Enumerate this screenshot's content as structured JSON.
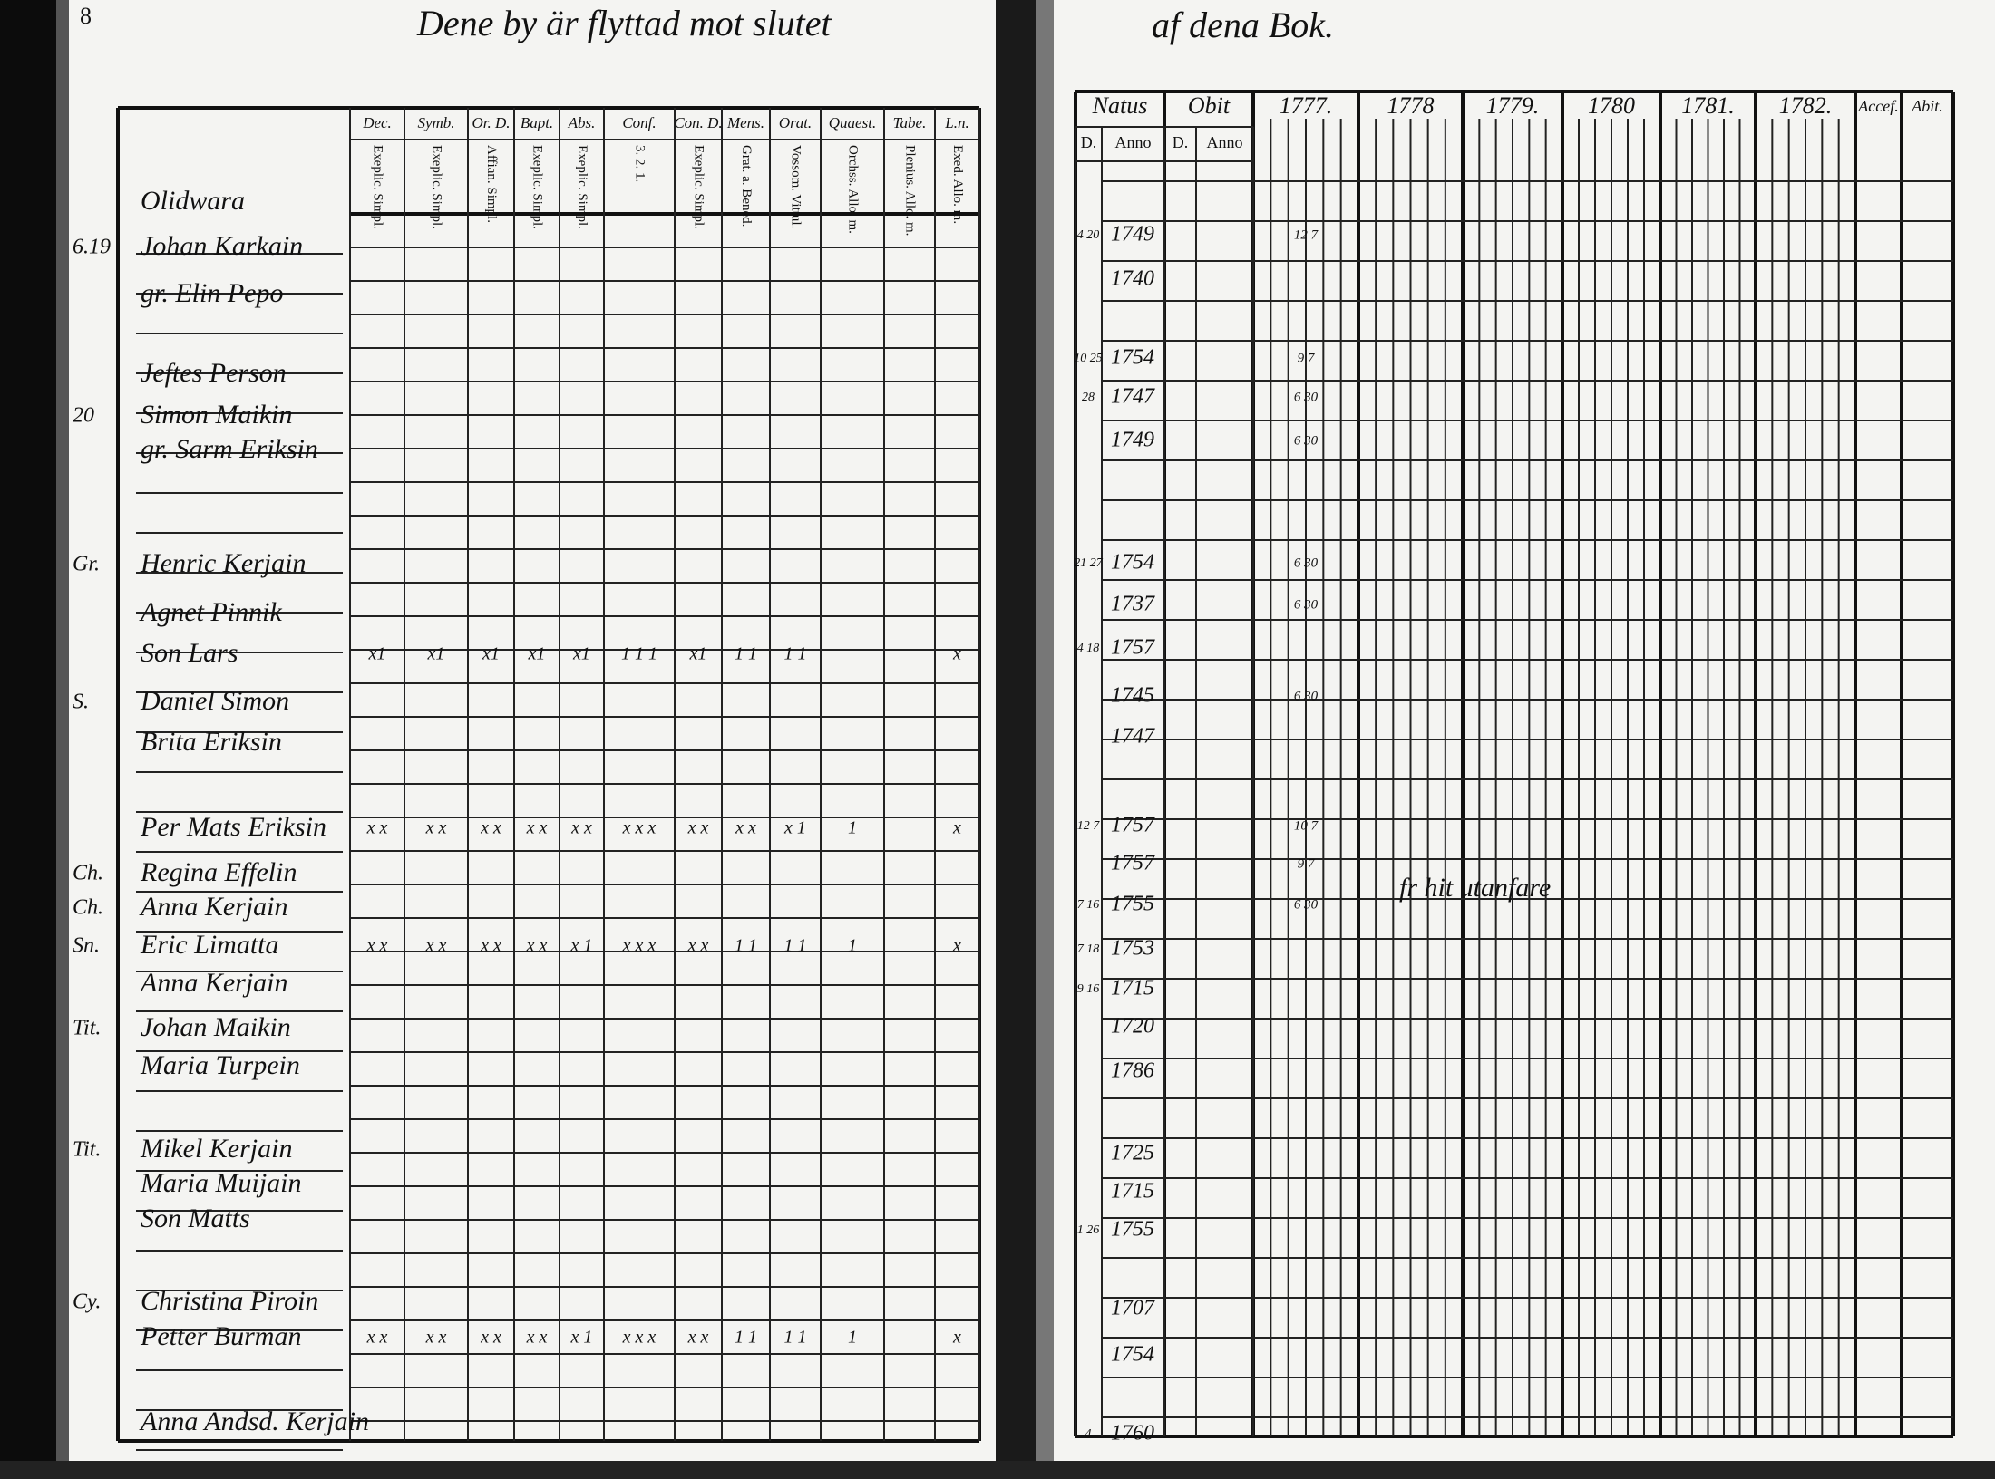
{
  "page_number": "8",
  "header": {
    "left": "Dene by är flyttad mot slutet",
    "right": "af dena Bok."
  },
  "left_table": {
    "columns": [
      {
        "label": "Dec.",
        "sub": "Exeplic. Simpl."
      },
      {
        "label": "Symb.",
        "sub": "Exeplic. Simpl."
      },
      {
        "label": "Or. D.",
        "sub": "Affian. Simpl."
      },
      {
        "label": "Bapt.",
        "sub": "Exeplic. Simpl."
      },
      {
        "label": "Abs.",
        "sub": "Exeplic. Simpl."
      },
      {
        "label": "Conf.",
        "sub": "3. 2. 1."
      },
      {
        "label": "Con. D.",
        "sub": "Exeplic. Simpl."
      },
      {
        "label": "Mens.",
        "sub": "Grat. a. Bened."
      },
      {
        "label": "Orat.",
        "sub": "Vossom. Vittul."
      },
      {
        "label": "Quaest.",
        "sub": "Orchss. Allo. m."
      },
      {
        "label": "Tabe.",
        "sub": "Plenius. Allo. m."
      },
      {
        "label": "L.n.",
        "sub": "Exed. Allo. m."
      }
    ],
    "rows": [
      {
        "name": "Olidwara"
      },
      {
        "name": "Johan Karkain",
        "margin": "6.19"
      },
      {
        "name": "gr. Elin Pepo"
      },
      {
        "name": "Jeftes Person"
      },
      {
        "name": "Simon Maikin",
        "margin": "20"
      },
      {
        "name": "gr. Sarm Eriksin"
      },
      {
        "name": "Henric Kerjain",
        "margin": "Gr."
      },
      {
        "name": "Agnet Pinnik"
      },
      {
        "name": "Son Lars",
        "marks": [
          "x1",
          "x1",
          "x1",
          "x1",
          "x1",
          "1 1 1",
          "x1",
          "1 1",
          "1 1",
          null,
          null,
          "x"
        ]
      },
      {
        "name": "Daniel Simon",
        "margin": "S."
      },
      {
        "name": "Brita Eriksin"
      },
      {
        "name": "Per Mats Eriksin",
        "marks": [
          "x x",
          "x x",
          "x x",
          "x x",
          "x x",
          "x x x",
          "x x",
          "x x",
          "x 1",
          "1",
          null,
          "x"
        ]
      },
      {
        "name": "Regina Effelin",
        "margin": "Ch."
      },
      {
        "name": "Anna Kerjain",
        "margin": "Ch."
      },
      {
        "name": "Eric Limatta",
        "margin": "Sn.",
        "marks": [
          "x x",
          "x x",
          "x x",
          "x x",
          "x 1",
          "x x x",
          "x x",
          "1 1",
          "1 1",
          "1",
          null,
          "x"
        ]
      },
      {
        "name": "Anna Kerjain"
      },
      {
        "name": "Johan Maikin",
        "margin": "Tit."
      },
      {
        "name": "Maria Turpein"
      },
      {
        "name": "Mikel Kerjain",
        "margin": "Tit."
      },
      {
        "name": "Maria Muijain"
      },
      {
        "name": "Son Matts"
      },
      {
        "name": "Christina Piroin",
        "margin": "Cy."
      },
      {
        "name": "Petter Burman",
        "marks": [
          "x x",
          "x x",
          "x x",
          "x x",
          "x 1",
          "x x x",
          "x x",
          "1 1",
          "1 1",
          "1",
          null,
          "x"
        ]
      },
      {
        "name": "Anna Andsd. Kerjain"
      }
    ]
  },
  "right_table": {
    "groups": [
      "Natus",
      "Obit",
      "1777.",
      "1778",
      "1779.",
      "1780",
      "1781.",
      "1782.",
      "Accef.",
      "Abit."
    ],
    "sub": [
      "D.",
      "Anno",
      "D.",
      "Anno"
    ],
    "entries": [
      {
        "day": "4 20",
        "year": "1749",
        "note": "12 7"
      },
      {
        "year": "1740"
      },
      {
        "day": "10 25",
        "year": "1754",
        "note": "9 7"
      },
      {
        "day": "28",
        "year": "1747",
        "note": "6 30"
      },
      {
        "year": "1749",
        "note": "6 30"
      },
      {
        "day": "21 27",
        "year": "1754",
        "note": "6 30"
      },
      {
        "year": "1737",
        "note": "6 30"
      },
      {
        "day": "4 18",
        "year": "1757"
      },
      {
        "year": "1745",
        "note": "6 30"
      },
      {
        "year": "1747"
      },
      {
        "day": "12 7",
        "year": "1757",
        "note": "10 7"
      },
      {
        "year": "1757",
        "note": "9 7"
      },
      {
        "day": "7 16",
        "year": "1755",
        "note": "6 30"
      },
      {
        "day": "7 18",
        "year": "1753"
      },
      {
        "day": "9 16",
        "year": "1715"
      },
      {
        "year": "1720"
      },
      {
        "year": "1786"
      },
      {
        "year": "1725"
      },
      {
        "year": "1715"
      },
      {
        "day": "1 26",
        "year": "1755"
      },
      {
        "year": "1707"
      },
      {
        "year": "1754"
      },
      {
        "day": "4",
        "year": "1760"
      }
    ],
    "note": "fr hit utanfare"
  }
}
